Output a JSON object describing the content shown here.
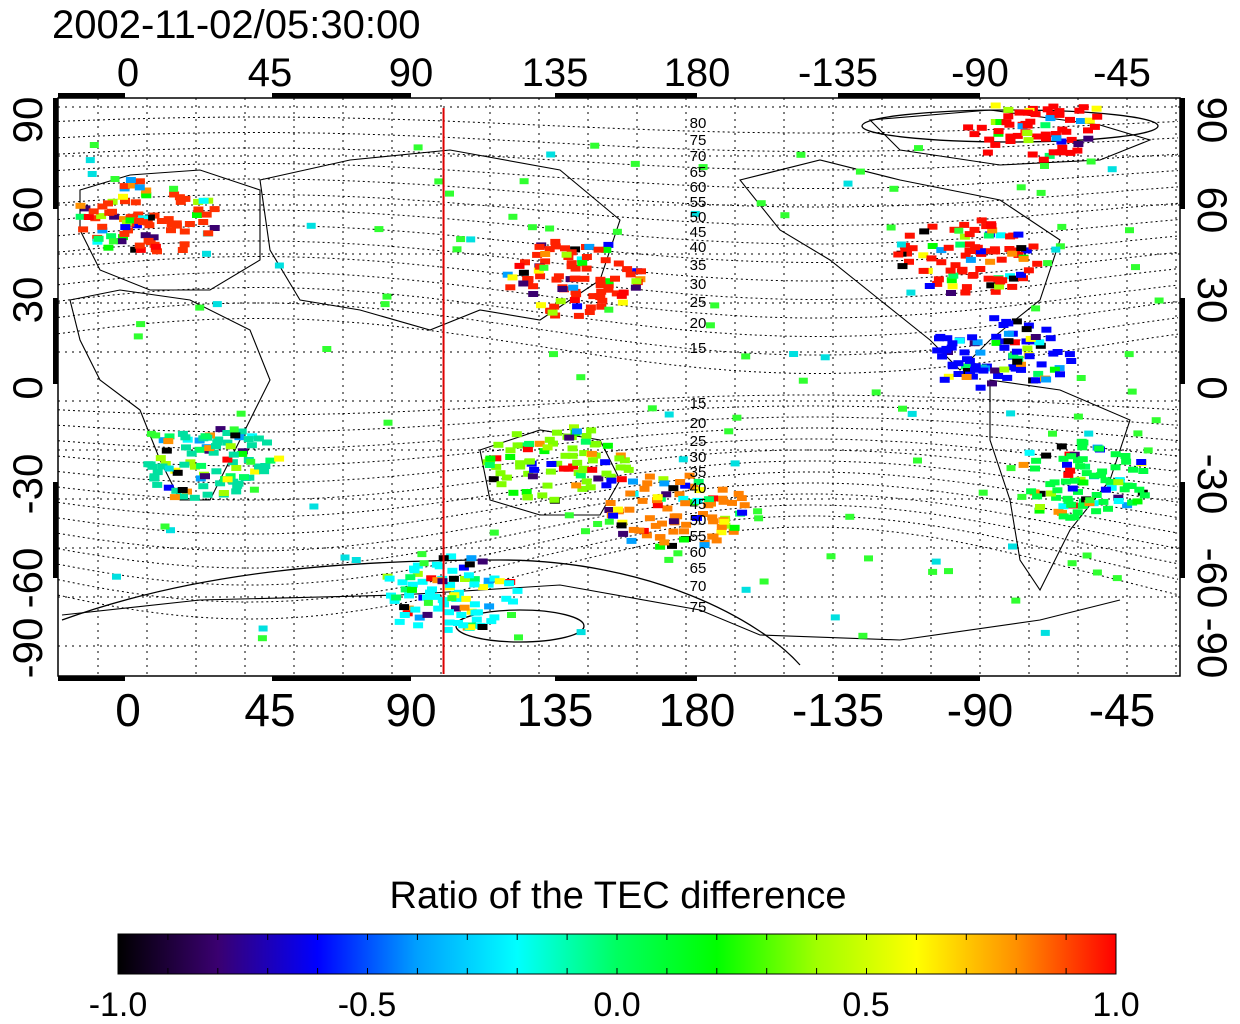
{
  "map": {
    "timestamp": "2002-11-02/05:30:00",
    "top_lon_ticks": [
      "0",
      "45",
      "90",
      "135",
      "180",
      "-135",
      "-90",
      "-45"
    ],
    "bottom_lon_ticks": [
      "0",
      "45",
      "90",
      "135",
      "180",
      "-135",
      "-90",
      "-45"
    ],
    "left_lat_ticks": [
      "90",
      "60",
      "30",
      "0",
      "-30",
      "-60",
      "-90"
    ],
    "right_lat_ticks": [
      "90",
      "60",
      "30",
      "0",
      "-30",
      "-60",
      "-90"
    ],
    "contour_labels_north": [
      "80",
      "75",
      "70",
      "65",
      "60",
      "55",
      "50",
      "45",
      "40",
      "35",
      "30",
      "25",
      "20",
      "15"
    ],
    "contour_labels_south": [
      "15",
      "20",
      "25",
      "30",
      "35",
      "40",
      "45",
      "50",
      "55",
      "60",
      "65",
      "70",
      "75"
    ],
    "terminator_color": "#dd0000",
    "terminator_longitude": 100
  },
  "colorbar": {
    "title": "Ratio of the TEC difference",
    "tick_labels": [
      "-1.0",
      "-0.5",
      "0.0",
      "0.5",
      "1.0"
    ],
    "range": [
      -1.0,
      1.0
    ],
    "colors": [
      "#000000",
      "#3a0070",
      "#0000ff",
      "#00a0ff",
      "#00ffff",
      "#00ff60",
      "#00ff00",
      "#a0ff00",
      "#ffff00",
      "#ff9000",
      "#ff0000"
    ]
  },
  "dataset": {
    "regions": [
      {
        "name": "europe",
        "lon": 5,
        "lat": 55,
        "color": "#ff3000"
      },
      {
        "name": "east-asia",
        "lon": 140,
        "lat": 35,
        "color": "#ff2000"
      },
      {
        "name": "north-america",
        "lon": -95,
        "lat": 42,
        "color": "#ff1000"
      },
      {
        "name": "arctic-canada",
        "lon": -75,
        "lat": 85,
        "color": "#ff0000"
      },
      {
        "name": "central-america",
        "lon": -85,
        "lat": 10,
        "color": "#0000ff"
      },
      {
        "name": "south-america",
        "lon": -60,
        "lat": -30,
        "color": "#00ff40"
      },
      {
        "name": "australia",
        "lon": 135,
        "lat": -25,
        "color": "#80ff00"
      },
      {
        "name": "new-zealand",
        "lon": 172,
        "lat": -40,
        "color": "#ff8000"
      },
      {
        "name": "africa-south",
        "lon": 25,
        "lat": -25,
        "color": "#00e0a0"
      },
      {
        "name": "antarctic-coast",
        "lon": 100,
        "lat": -67,
        "color": "#00ffff"
      }
    ]
  }
}
